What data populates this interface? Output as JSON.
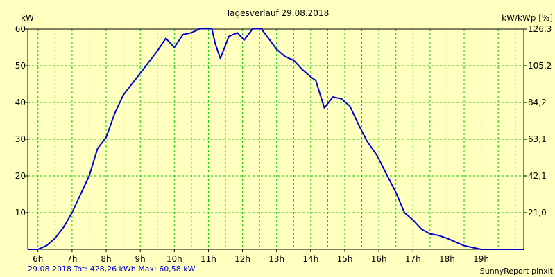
{
  "chart_data": {
    "type": "line",
    "title": "Tagesverlauf 29.08.2018",
    "ylabel_left": "kW",
    "ylabel_right": "kW/kWp [%]",
    "xlabel": "",
    "x_ticks": [
      "6h",
      "7h",
      "8h",
      "9h",
      "10h",
      "11h",
      "12h",
      "13h",
      "14h",
      "15h",
      "16h",
      "17h",
      "18h",
      "19h"
    ],
    "x_tick_hours": [
      6,
      7,
      8,
      9,
      10,
      11,
      12,
      13,
      14,
      15,
      16,
      17,
      18,
      19
    ],
    "xlim": [
      5.7,
      20.25
    ],
    "y_ticks_left": [
      "10",
      "20",
      "30",
      "40",
      "50",
      "60"
    ],
    "y_tick_values_left": [
      10,
      20,
      30,
      40,
      50,
      60
    ],
    "y_ticks_right": [
      "21,0",
      "42,1",
      "63,1",
      "84,2",
      "105,2",
      "126,3"
    ],
    "ylim": [
      0,
      60
    ],
    "grid": true,
    "line_color": "#0000cc",
    "grid_color": "#00cc00",
    "background_color": "#ffffc0",
    "series": [
      {
        "x": [
          5.7,
          6.0,
          6.25,
          6.5,
          6.75,
          7.0,
          7.25,
          7.5,
          7.75,
          8.0,
          8.25,
          8.5,
          8.75,
          9.0,
          9.25,
          9.5,
          9.75,
          10.0,
          10.25,
          10.5,
          10.75,
          11.0,
          11.1,
          11.2,
          11.35,
          11.6,
          11.85,
          12.05,
          12.3,
          12.55,
          12.8,
          13.0,
          13.25,
          13.5,
          13.75,
          14.0,
          14.15,
          14.4,
          14.65,
          14.9,
          15.15,
          15.4,
          15.65,
          15.95,
          16.25,
          16.5,
          16.75,
          17.0,
          17.25,
          17.5,
          17.75,
          18.0,
          18.25,
          18.5,
          18.75,
          19.0,
          19.25,
          19.5,
          19.75,
          20.0,
          20.25
        ],
        "values": [
          0,
          0,
          1,
          3,
          6,
          10,
          15,
          20,
          27.5,
          30.5,
          37,
          42,
          45,
          48,
          51,
          54,
          57.5,
          55,
          58.5,
          59,
          61,
          62.5,
          60.5,
          56,
          52,
          58,
          59,
          57,
          60.5,
          60.5,
          57,
          54.5,
          52.5,
          51.5,
          49,
          47,
          46,
          38.5,
          41.5,
          41,
          39,
          34,
          29.5,
          25.5,
          20,
          15.5,
          10,
          8,
          5.5,
          4.2,
          3.8,
          3,
          2,
          1,
          0.5,
          0,
          0,
          0,
          0,
          0,
          0
        ]
      }
    ]
  },
  "footer": {
    "left": "29.08.2018 Tot: 428,26 kWh Max: 60,58 kW",
    "right": "SunnyReport pinxit"
  }
}
